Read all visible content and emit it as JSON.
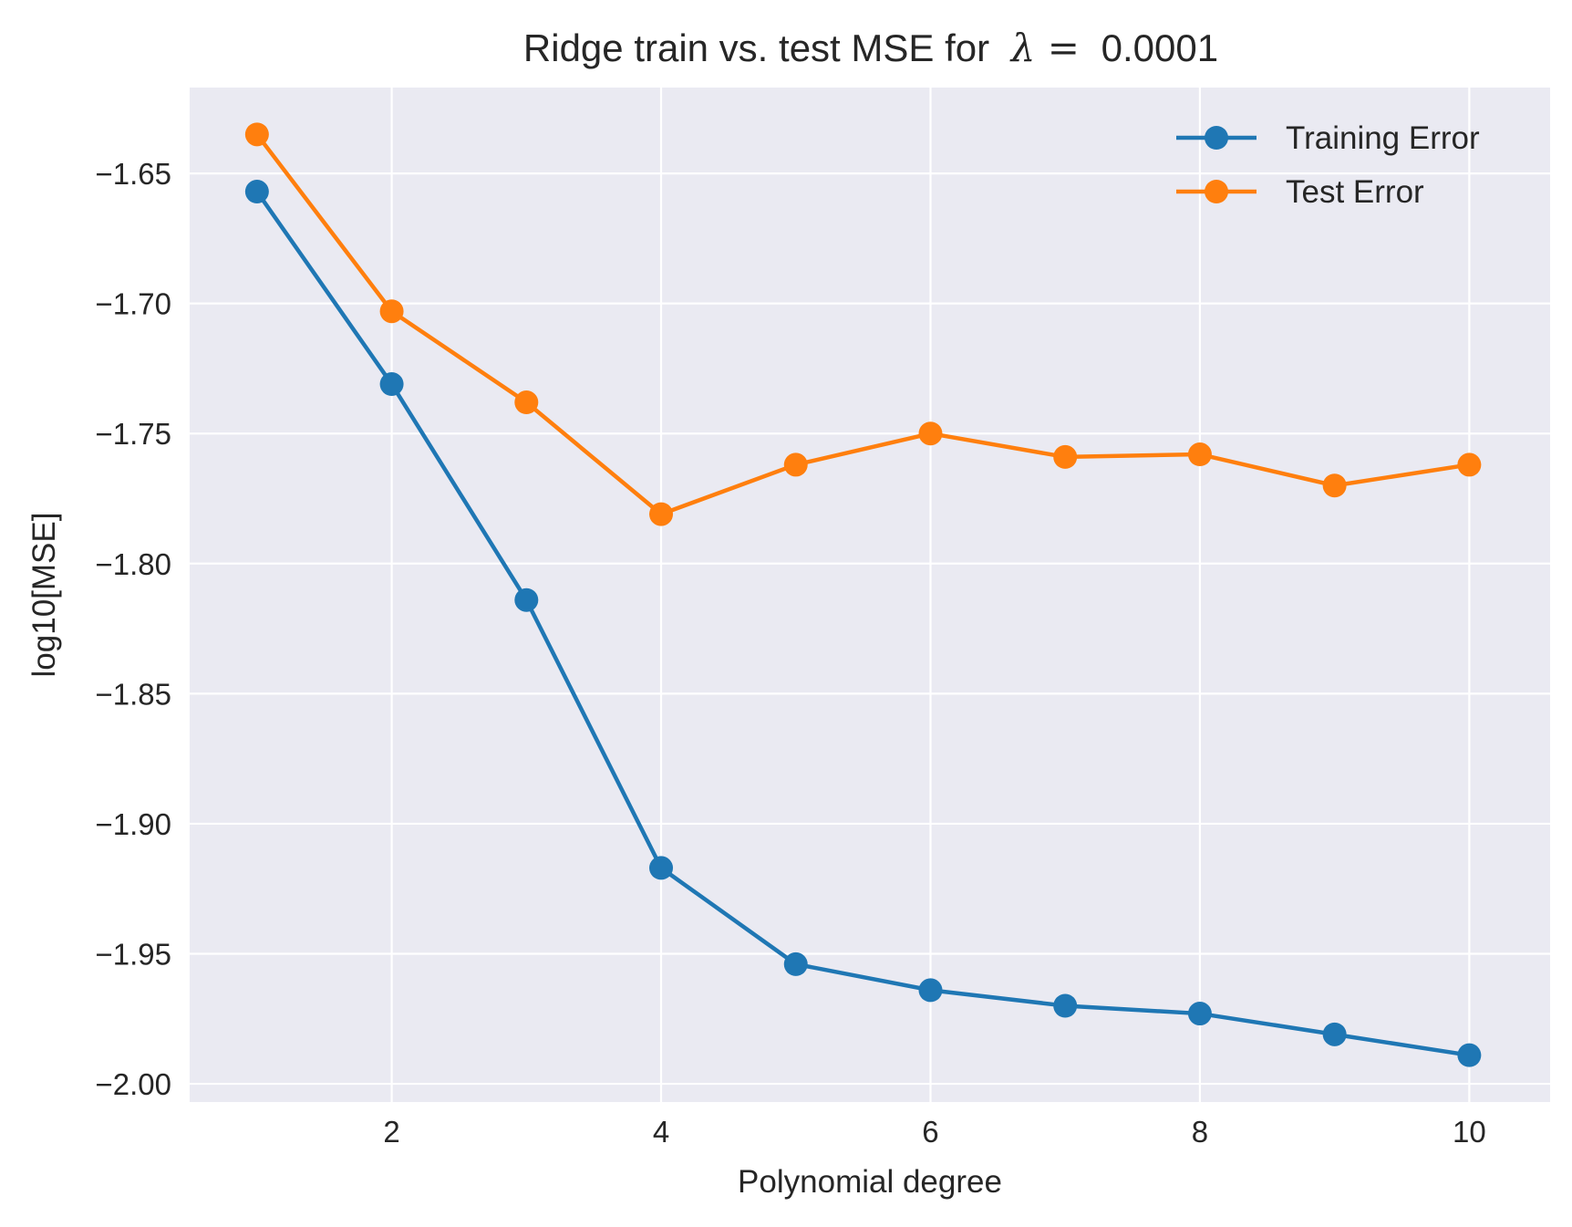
{
  "chart_data": {
    "type": "line",
    "title": "Ridge train vs. test MSE for",
    "title_symbol": "λ =",
    "title_value": "0.0001",
    "xlabel": "Polynomial degree",
    "ylabel": "log10[MSE]",
    "x": [
      1,
      2,
      3,
      4,
      5,
      6,
      7,
      8,
      9,
      10
    ],
    "xlim": [
      0.5,
      10.6
    ],
    "ylim": [
      -2.007,
      -1.617
    ],
    "x_ticks": [
      2,
      4,
      6,
      8,
      10
    ],
    "x_tick_labels": [
      "2",
      "4",
      "6",
      "8",
      "10"
    ],
    "y_ticks": [
      -1.65,
      -1.7,
      -1.75,
      -1.8,
      -1.85,
      -1.9,
      -1.95,
      -2.0
    ],
    "y_tick_labels": [
      "−1.65",
      "−1.70",
      "−1.75",
      "−1.80",
      "−1.85",
      "−1.90",
      "−1.95",
      "−2.00"
    ],
    "grid": true,
    "legend_position": "top-right",
    "series": [
      {
        "name": "Training Error",
        "color": "#1f77b4",
        "values": [
          -1.657,
          -1.731,
          -1.814,
          -1.917,
          -1.954,
          -1.964,
          -1.97,
          -1.973,
          -1.981,
          -1.989
        ]
      },
      {
        "name": "Test Error",
        "color": "#ff7f0e",
        "values": [
          -1.635,
          -1.703,
          -1.738,
          -1.781,
          -1.762,
          -1.75,
          -1.759,
          -1.758,
          -1.77,
          -1.762
        ]
      }
    ],
    "style": {
      "plot_background": "#eaeaf2",
      "grid_color": "#ffffff",
      "text_color": "#262626"
    }
  }
}
